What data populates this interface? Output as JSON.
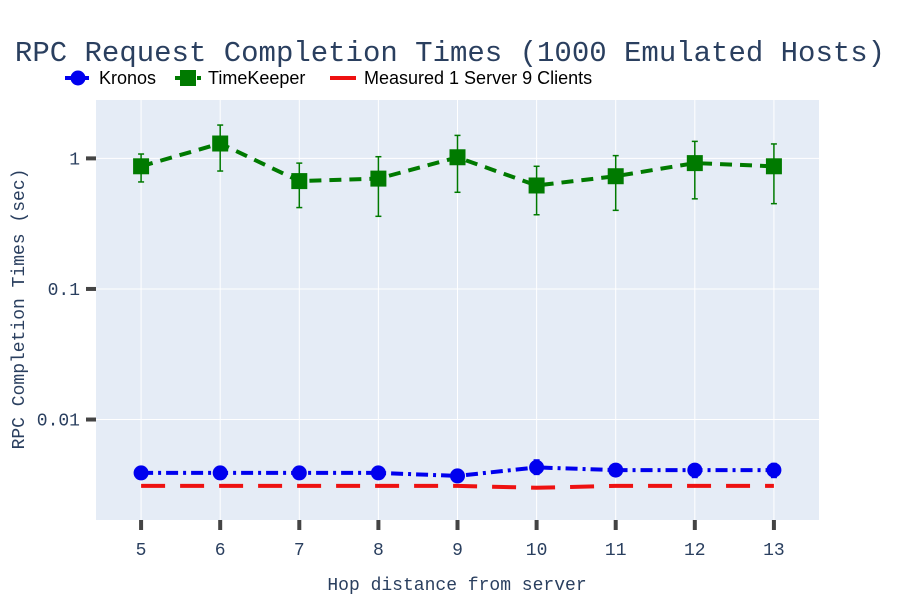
{
  "colors": {
    "plot_bg": "#e5ecf6",
    "grid": "#ffffff",
    "text": "#2a3f5f",
    "tick_mark": "#444444"
  },
  "chart_data": {
    "type": "line",
    "title": "RPC Request Completion Times (1000 Emulated Hosts)",
    "xlabel": "Hop distance from server",
    "ylabel": "RPC Completion Times (sec)",
    "y_scale": "log",
    "xlim": [
      4.43,
      13.57
    ],
    "ylim": [
      0.0017,
      2.8
    ],
    "x": [
      5,
      6,
      7,
      8,
      9,
      10,
      11,
      12,
      13
    ],
    "x_tick_labels": [
      "5",
      "6",
      "7",
      "8",
      "9",
      "10",
      "11",
      "12",
      "13"
    ],
    "y_tick_values": [
      0.01,
      0.1,
      1
    ],
    "y_tick_labels": [
      "0.01",
      "0.1",
      "1"
    ],
    "grid": true,
    "legend_position": "top",
    "series": [
      {
        "name": "Kronos",
        "color": "#0000ee",
        "dash": "dashdot",
        "marker": "circle",
        "values": [
          0.0039,
          0.0039,
          0.0039,
          0.0039,
          0.0037,
          0.0043,
          0.0041,
          0.0041,
          0.0041
        ],
        "error_low": [
          0.0038,
          0.0035,
          0.0036,
          0.0037,
          0.0034,
          0.0038,
          0.0038,
          0.0036,
          0.0036
        ],
        "error_high": [
          0.0041,
          0.0042,
          0.0042,
          0.0042,
          0.0039,
          0.0049,
          0.0045,
          0.0045,
          0.0046
        ]
      },
      {
        "name": "TimeKeeper",
        "color": "#007a00",
        "dash": "dash",
        "marker": "square",
        "values": [
          0.87,
          1.3,
          0.67,
          0.7,
          1.02,
          0.62,
          0.73,
          0.92,
          0.87
        ],
        "error_low": [
          0.66,
          0.8,
          0.42,
          0.36,
          0.55,
          0.37,
          0.4,
          0.49,
          0.45
        ],
        "error_high": [
          1.08,
          1.8,
          0.92,
          1.03,
          1.5,
          0.87,
          1.05,
          1.35,
          1.29
        ]
      },
      {
        "name": "Measured 1 Server 9 Clients",
        "color": "#ee1111",
        "dash": "longdash",
        "marker": "none",
        "values": [
          0.0031,
          0.0031,
          0.0031,
          0.0031,
          0.0031,
          0.003,
          0.0031,
          0.0031,
          0.0031
        ]
      }
    ]
  }
}
